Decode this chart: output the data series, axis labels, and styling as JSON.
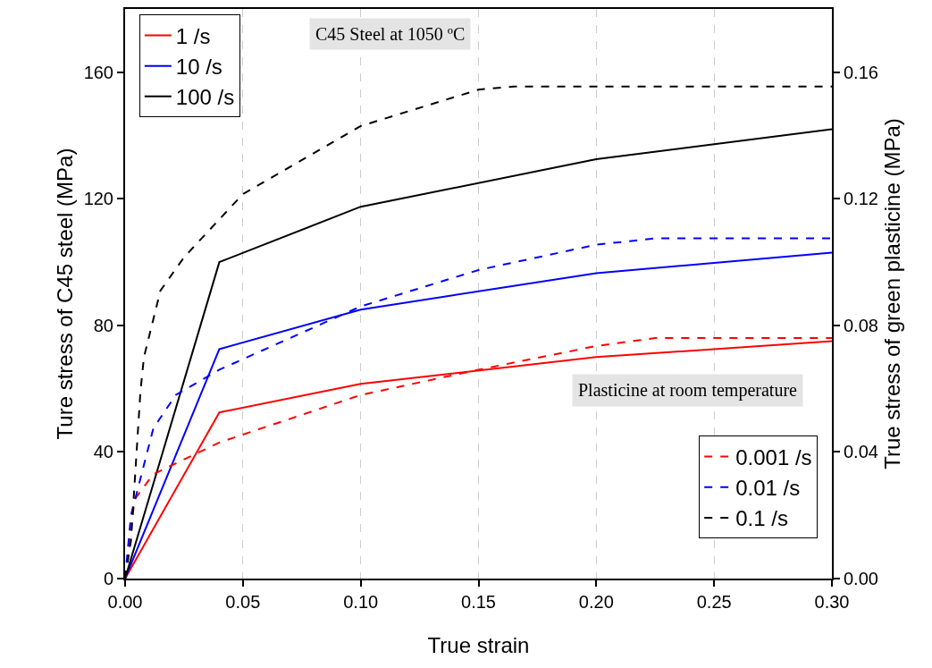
{
  "chart_data": {
    "type": "line",
    "xlabel": "True strain",
    "ylabel": "Ture stress of C45 steel (MPa)",
    "y2label": "True stress of green plasticine (MPa)",
    "xlim": [
      0,
      0.3
    ],
    "xticks": [
      {
        "value": 0,
        "label": "0.00"
      },
      0.05,
      {
        "value": 0.1,
        "label": "0.10"
      },
      0.15,
      {
        "value": 0.2,
        "label": "0.20"
      },
      0.25,
      {
        "value": 0.3,
        "label": "0.30"
      }
    ],
    "ylim": [
      0,
      180
    ],
    "yticks": [
      0,
      40,
      80,
      120,
      160
    ],
    "y2lim": [
      0,
      0.18
    ],
    "y2ticks": [
      {
        "value": 0,
        "label": "0.00"
      },
      0.04,
      0.08,
      0.12,
      0.16
    ],
    "grid": "x",
    "legend": "top left",
    "marker": "none",
    "annotations": [
      "C45 Steel at 1050 ºC",
      "Plasticine at room temperature"
    ],
    "series": [
      {
        "name": "1 /s",
        "color": "#ff0000",
        "line_style": "solid",
        "x": [
          0,
          0.04,
          0.1,
          0.2,
          0.3
        ],
        "values": [
          0,
          52.5,
          61.5,
          70,
          75
        ]
      },
      {
        "name": "10 /s",
        "color": "#0000ff",
        "line_style": "solid",
        "x": [
          0,
          0.04,
          0.1,
          0.2,
          0.3
        ],
        "values": [
          0,
          72.5,
          85,
          96.5,
          103
        ]
      },
      {
        "name": "100 /s",
        "color": "#000000",
        "line_style": "solid",
        "x": [
          0,
          0.04,
          0.1,
          0.2,
          0.3
        ],
        "values": [
          0,
          100,
          117.5,
          132.5,
          142
        ]
      },
      {
        "name": "0.001 /s",
        "color": "#ff0000",
        "line_style": "dashed",
        "axis": "y2",
        "x": [
          0,
          0.002,
          0.004,
          0.012,
          0.04,
          0.1,
          0.15,
          0.2,
          0.225,
          0.3
        ],
        "values": [
          0,
          0.012,
          0.025,
          0.033,
          0.043,
          0.058,
          0.066,
          0.0735,
          0.076,
          0.076
        ]
      },
      {
        "name": "0.01 /s",
        "color": "#0000ff",
        "line_style": "dashed",
        "axis": "y2",
        "x": [
          0,
          0.0025,
          0.012,
          0.0215,
          0.04,
          0.1,
          0.15,
          0.2,
          0.225,
          0.3
        ],
        "values": [
          0,
          0.02,
          0.0475,
          0.058,
          0.066,
          0.086,
          0.0975,
          0.1055,
          0.1075,
          0.1075
        ]
      },
      {
        "name": "0.1 /s",
        "color": "#000000",
        "line_style": "dashed",
        "axis": "y2",
        "x": [
          0,
          0.0025,
          0.0065,
          0.008,
          0.015,
          0.025,
          0.05,
          0.1,
          0.15,
          0.165,
          0.3
        ],
        "values": [
          0,
          0.012,
          0.059,
          0.07,
          0.091,
          0.1015,
          0.1215,
          0.143,
          0.1545,
          0.1555,
          0.1555
        ]
      }
    ]
  }
}
